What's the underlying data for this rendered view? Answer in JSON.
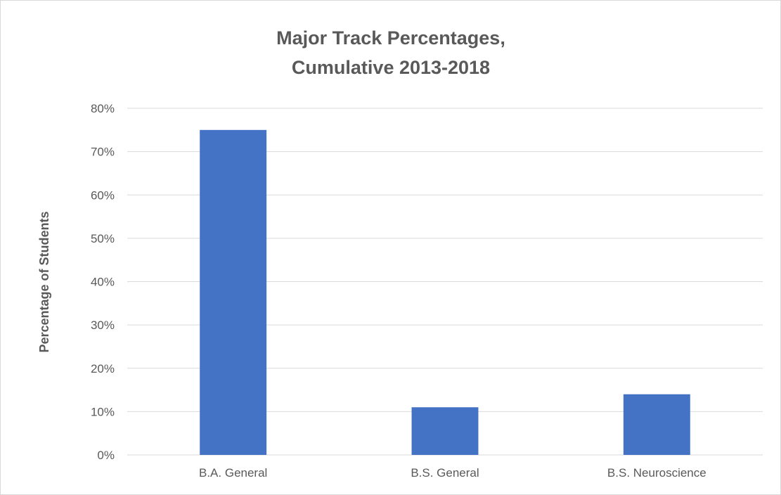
{
  "chart_data": {
    "type": "bar",
    "title_lines": [
      "Major Track Percentages,",
      "Cumulative 2013-2018"
    ],
    "xlabel": "",
    "ylabel": "Percentage of Students",
    "categories": [
      "B.A. General",
      "B.S. General",
      "B.S. Neuroscience"
    ],
    "values": [
      75,
      11,
      14
    ],
    "ylim": [
      0,
      80
    ],
    "yticks": [
      0,
      10,
      20,
      30,
      40,
      50,
      60,
      70,
      80
    ],
    "ytick_labels": [
      "0%",
      "10%",
      "20%",
      "30%",
      "40%",
      "50%",
      "60%",
      "70%",
      "80%"
    ],
    "grid": true,
    "legend": "none",
    "bar_color": "#4472c4",
    "grid_color": "#d9d9d9"
  }
}
